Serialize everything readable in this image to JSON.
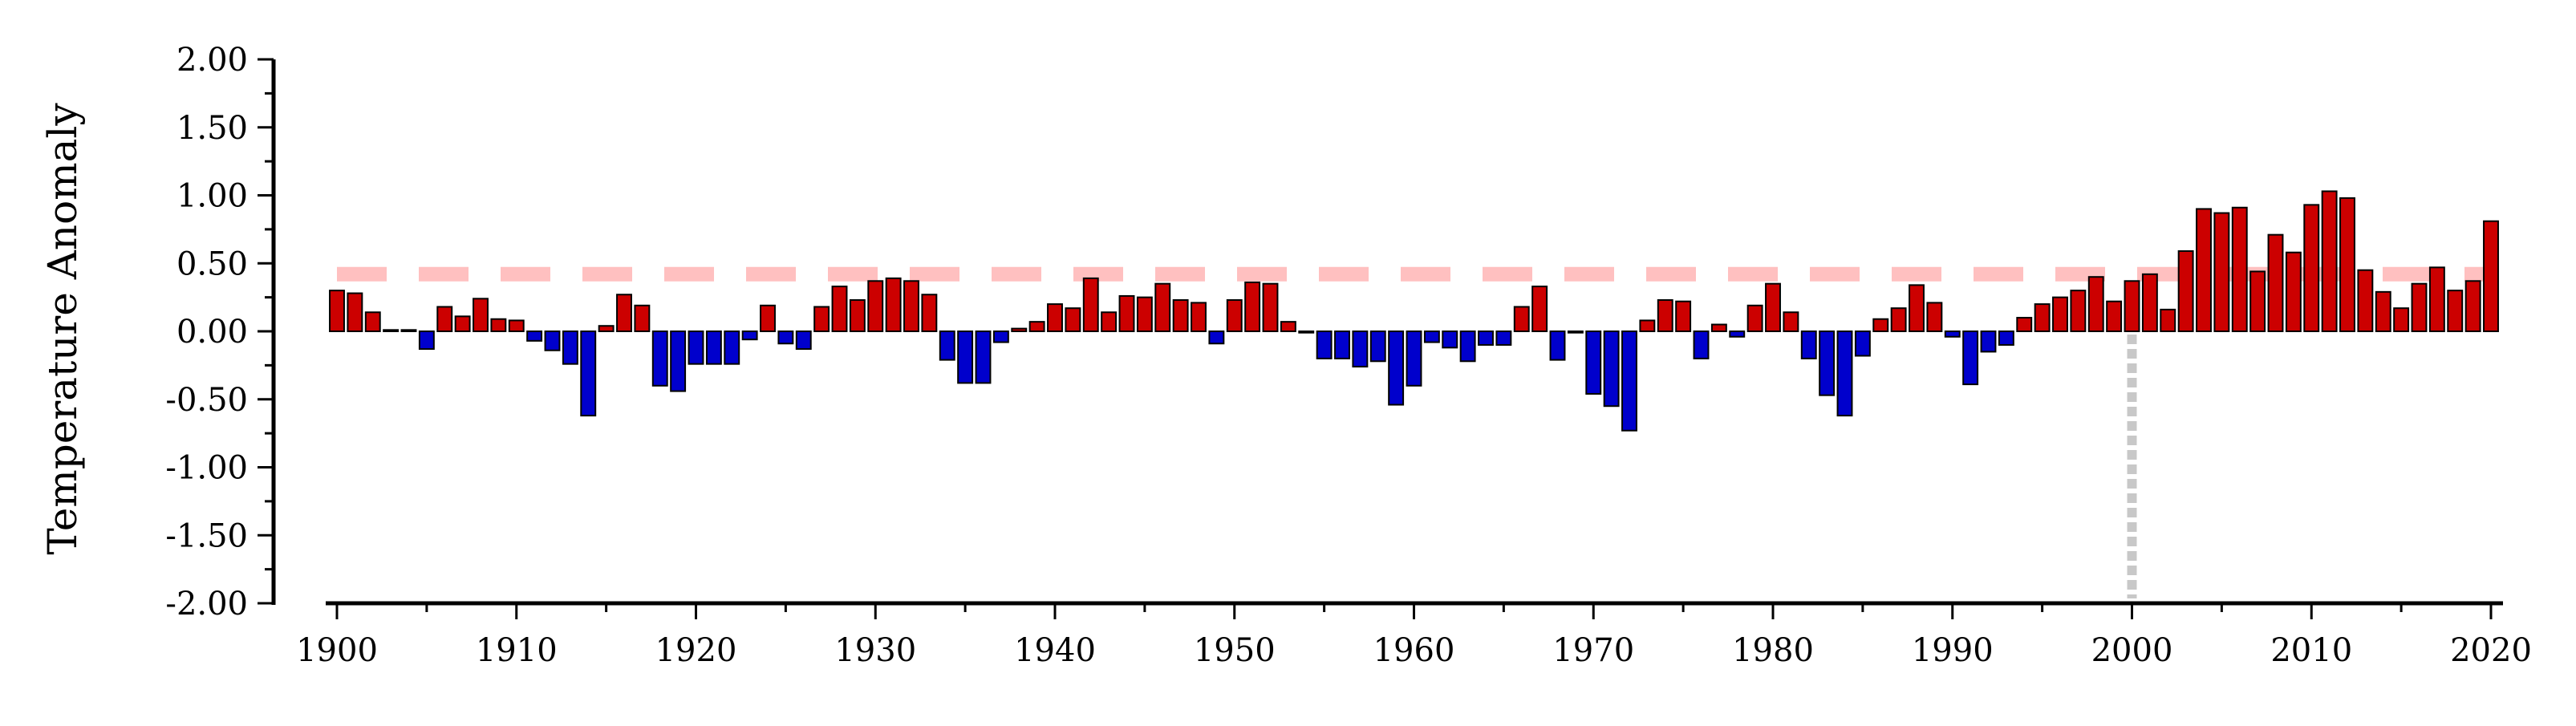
{
  "chart_data": {
    "type": "bar",
    "title": "",
    "xlabel": "",
    "ylabel": "Temperature Anomaly",
    "xlim": [
      1900,
      2020
    ],
    "ylim": [
      -2.0,
      2.0
    ],
    "x_ticks": [
      1900,
      1910,
      1920,
      1930,
      1940,
      1950,
      1960,
      1970,
      1980,
      1990,
      2000,
      2010,
      2020
    ],
    "y_ticks": [
      "2.00",
      "1.50",
      "1.00",
      "0.50",
      "0.00",
      "-0.50",
      "-1.00",
      "-1.50",
      "-2.00"
    ],
    "grid": false,
    "legend": "none",
    "colors": {
      "positive": "#cc0000",
      "negative": "#0000cc",
      "reference_line": "#ffc0c0",
      "marker_line": "#c8c8c8"
    },
    "reference_line_y": 0.42,
    "marker_x": 2000,
    "x": [
      1900,
      1901,
      1902,
      1903,
      1904,
      1905,
      1906,
      1907,
      1908,
      1909,
      1910,
      1911,
      1912,
      1913,
      1914,
      1915,
      1916,
      1917,
      1918,
      1919,
      1920,
      1921,
      1922,
      1923,
      1924,
      1925,
      1926,
      1927,
      1928,
      1929,
      1930,
      1931,
      1932,
      1933,
      1934,
      1935,
      1936,
      1937,
      1938,
      1939,
      1940,
      1941,
      1942,
      1943,
      1944,
      1945,
      1946,
      1947,
      1948,
      1949,
      1950,
      1951,
      1952,
      1953,
      1954,
      1955,
      1956,
      1957,
      1958,
      1959,
      1960,
      1961,
      1962,
      1963,
      1964,
      1965,
      1966,
      1967,
      1968,
      1969,
      1970,
      1971,
      1972,
      1973,
      1974,
      1975,
      1976,
      1977,
      1978,
      1979,
      1980,
      1981,
      1982,
      1983,
      1984,
      1985,
      1986,
      1987,
      1988,
      1989,
      1990,
      1991,
      1992,
      1993,
      1994,
      1995,
      1996,
      1997,
      1998,
      1999,
      2000,
      2001,
      2002,
      2003,
      2004,
      2005,
      2006,
      2007,
      2008,
      2009,
      2010,
      2011,
      2012,
      2013,
      2014,
      2015,
      2016,
      2017,
      2018,
      2019,
      2020
    ],
    "values": [
      0.3,
      0.28,
      0.14,
      0.01,
      0.01,
      -0.13,
      0.18,
      0.11,
      0.24,
      0.09,
      0.08,
      -0.07,
      -0.14,
      -0.24,
      -0.62,
      0.04,
      0.27,
      0.19,
      -0.4,
      -0.44,
      -0.24,
      -0.24,
      -0.24,
      -0.06,
      0.19,
      -0.09,
      -0.13,
      0.18,
      0.33,
      0.23,
      0.37,
      0.39,
      0.37,
      0.27,
      -0.21,
      -0.38,
      -0.38,
      -0.08,
      0.02,
      0.07,
      0.2,
      0.17,
      0.39,
      0.14,
      0.26,
      0.25,
      0.35,
      0.23,
      0.21,
      -0.09,
      0.23,
      0.36,
      0.35,
      0.07,
      -0.01,
      -0.2,
      -0.2,
      -0.26,
      -0.22,
      -0.54,
      -0.4,
      -0.08,
      -0.12,
      -0.22,
      -0.1,
      -0.1,
      0.18,
      0.33,
      -0.21,
      -0.01,
      -0.46,
      -0.55,
      -0.73,
      0.08,
      0.23,
      0.22,
      -0.2,
      0.05,
      -0.04,
      0.19,
      0.35,
      0.14,
      -0.2,
      -0.47,
      -0.62,
      -0.18,
      0.09,
      0.17,
      0.34,
      0.21,
      -0.04,
      -0.39,
      -0.15,
      -0.1,
      0.1,
      0.2,
      0.25,
      0.3,
      0.4,
      0.22,
      0.37,
      0.42,
      0.16,
      0.59,
      0.9,
      0.87,
      0.91,
      0.44,
      0.71,
      0.58,
      0.93,
      1.03,
      0.98,
      0.45,
      0.29,
      0.17,
      0.35,
      0.47,
      0.3,
      0.37,
      0.81
    ]
  }
}
